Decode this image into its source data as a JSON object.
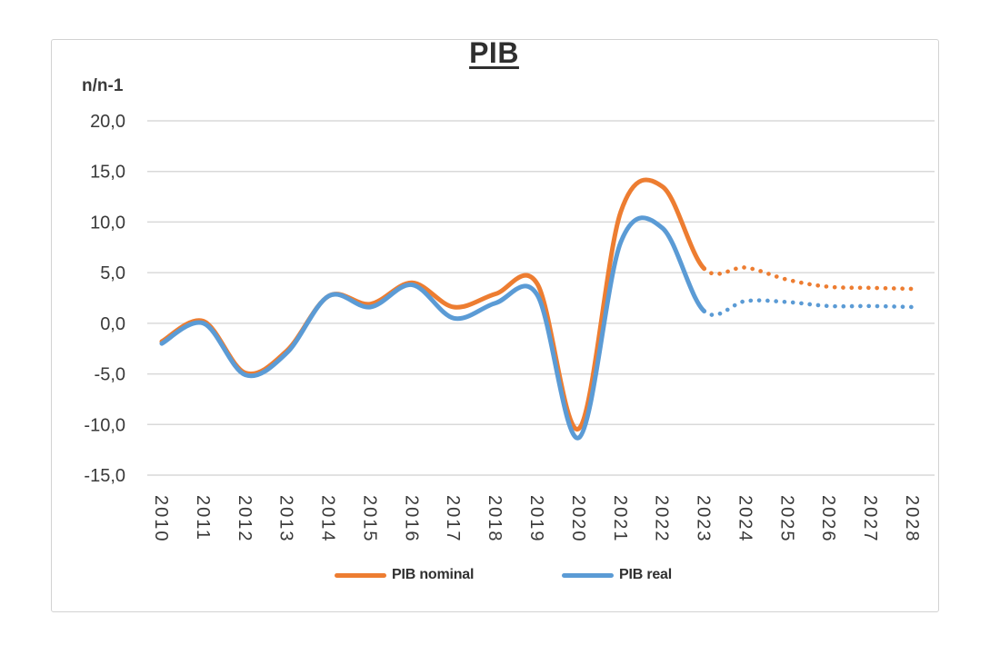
{
  "page": {
    "title": "PIB"
  },
  "axes": {
    "y_axis_title": "n/n-1",
    "y_tick_labels": [
      "20,0",
      "15,0",
      "10,0",
      "5,0",
      "0,0",
      "-5,0",
      "-10,0",
      "-15,0"
    ],
    "y_tick_values": [
      20,
      15,
      10,
      5,
      0,
      -5,
      -10,
      -15
    ]
  },
  "legend": {
    "entries": [
      "PIB nominal",
      "PIB real"
    ],
    "position": "bottom-center"
  },
  "colors": {
    "nominal": "#ED7D31",
    "real": "#5B9BD5",
    "grid": "#D9D9D9",
    "frame_border": "#D2D2D2",
    "text": "#3A3A3A",
    "background": "#FFFFFF"
  },
  "chart_data": {
    "type": "line",
    "title": "PIB",
    "ylabel": "n/n-1",
    "xlabel": "",
    "grid": "horizontal",
    "legend_position": "bottom",
    "ylim": [
      -17.5,
      22.5
    ],
    "x": [
      2010,
      2011,
      2012,
      2013,
      2014,
      2015,
      2016,
      2017,
      2018,
      2019,
      2020,
      2021,
      2022,
      2023,
      2024,
      2025,
      2026,
      2027,
      2028
    ],
    "dotted_from_year": 2023,
    "line_smoothing": true,
    "series": [
      {
        "name": "PIB nominal",
        "color": "#ED7D31",
        "values": [
          -1.8,
          0.2,
          -4.9,
          -2.7,
          2.7,
          1.9,
          4.0,
          1.6,
          2.9,
          3.9,
          -10.4,
          11.0,
          13.5,
          5.4,
          5.5,
          4.3,
          3.6,
          3.5,
          3.4
        ]
      },
      {
        "name": "PIB real",
        "color": "#5B9BD5",
        "values": [
          -2.0,
          0.0,
          -5.1,
          -2.9,
          2.7,
          1.6,
          3.8,
          0.5,
          2.0,
          2.8,
          -11.3,
          8.0,
          9.4,
          1.2,
          2.2,
          2.1,
          1.7,
          1.7,
          1.6
        ]
      }
    ]
  }
}
